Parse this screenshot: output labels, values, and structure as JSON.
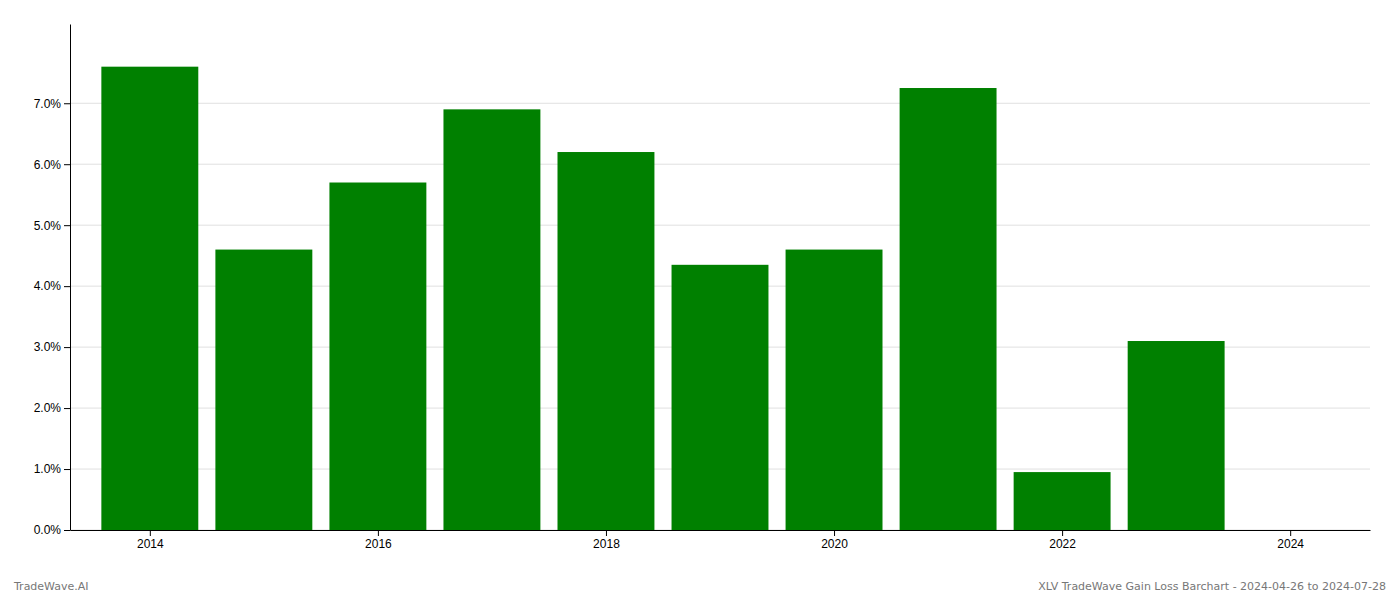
{
  "chart_data": {
    "type": "bar",
    "x": [
      2014,
      2015,
      2016,
      2017,
      2018,
      2019,
      2020,
      2021,
      2022,
      2023
    ],
    "values": [
      0.076,
      0.046,
      0.057,
      0.069,
      0.062,
      0.0435,
      0.046,
      0.0725,
      0.0095,
      0.031
    ],
    "color": "#008000",
    "xlim": [
      2013.3,
      2024.7
    ],
    "xticks": [
      2014,
      2016,
      2018,
      2020,
      2022,
      2024
    ],
    "ylim": [
      0,
      0.083
    ],
    "yticks": [
      {
        "value": 0.0,
        "label": "0.0%"
      },
      {
        "value": 0.01,
        "label": "1.0%"
      },
      {
        "value": 0.02,
        "label": "2.0%"
      },
      {
        "value": 0.03,
        "label": "3.0%"
      },
      {
        "value": 0.04,
        "label": "4.0%"
      },
      {
        "value": 0.05,
        "label": "5.0%"
      },
      {
        "value": 0.06,
        "label": "6.0%"
      },
      {
        "value": 0.07,
        "label": "7.0%"
      }
    ],
    "grid": true,
    "annotations": [
      "TradeWave.AI",
      "XLV TradeWave Gain Loss Barchart - 2024-04-26 to 2024-07-28"
    ]
  }
}
